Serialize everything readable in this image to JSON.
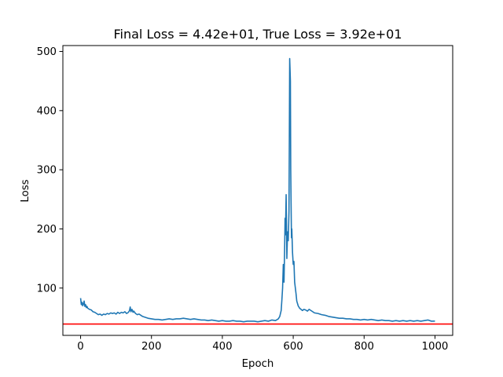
{
  "chart_data": {
    "type": "line",
    "title": "Final Loss = 4.42e+01, True Loss = 3.92e+01",
    "xlabel": "Epoch",
    "ylabel": "Loss",
    "xlim": [
      -50,
      1050
    ],
    "ylim": [
      20,
      510
    ],
    "x_ticks": [
      0,
      200,
      400,
      600,
      800,
      1000
    ],
    "y_ticks": [
      100,
      200,
      300,
      400,
      500
    ],
    "grid": false,
    "series": [
      {
        "color": "#1f77b4",
        "points": [
          [
            0,
            83
          ],
          [
            2,
            72
          ],
          [
            4,
            76
          ],
          [
            6,
            70
          ],
          [
            8,
            73
          ],
          [
            10,
            78
          ],
          [
            12,
            69
          ],
          [
            14,
            72
          ],
          [
            16,
            67
          ],
          [
            18,
            69
          ],
          [
            20,
            66
          ],
          [
            25,
            64
          ],
          [
            30,
            63
          ],
          [
            35,
            60
          ],
          [
            40,
            59
          ],
          [
            45,
            57
          ],
          [
            50,
            55
          ],
          [
            55,
            56
          ],
          [
            60,
            54
          ],
          [
            65,
            56
          ],
          [
            70,
            55
          ],
          [
            75,
            57
          ],
          [
            80,
            56
          ],
          [
            85,
            58
          ],
          [
            90,
            57
          ],
          [
            95,
            58
          ],
          [
            100,
            56
          ],
          [
            105,
            59
          ],
          [
            110,
            57
          ],
          [
            115,
            59
          ],
          [
            120,
            58
          ],
          [
            125,
            60
          ],
          [
            130,
            57
          ],
          [
            135,
            59
          ],
          [
            138,
            62
          ],
          [
            140,
            68
          ],
          [
            142,
            60
          ],
          [
            145,
            64
          ],
          [
            148,
            59
          ],
          [
            150,
            61
          ],
          [
            155,
            57
          ],
          [
            160,
            55
          ],
          [
            165,
            56
          ],
          [
            170,
            54
          ],
          [
            175,
            52
          ],
          [
            180,
            51
          ],
          [
            190,
            49
          ],
          [
            200,
            48
          ],
          [
            210,
            47
          ],
          [
            220,
            47
          ],
          [
            230,
            46
          ],
          [
            240,
            47
          ],
          [
            250,
            48
          ],
          [
            260,
            47
          ],
          [
            270,
            48
          ],
          [
            280,
            48
          ],
          [
            290,
            49
          ],
          [
            300,
            48
          ],
          [
            310,
            47
          ],
          [
            320,
            48
          ],
          [
            330,
            47
          ],
          [
            340,
            46
          ],
          [
            350,
            46
          ],
          [
            360,
            45
          ],
          [
            370,
            46
          ],
          [
            380,
            45
          ],
          [
            390,
            44
          ],
          [
            400,
            45
          ],
          [
            410,
            44
          ],
          [
            420,
            44
          ],
          [
            430,
            45
          ],
          [
            440,
            44
          ],
          [
            450,
            44
          ],
          [
            460,
            43
          ],
          [
            470,
            44
          ],
          [
            480,
            44
          ],
          [
            490,
            44
          ],
          [
            500,
            43
          ],
          [
            510,
            44
          ],
          [
            520,
            45
          ],
          [
            530,
            44
          ],
          [
            540,
            46
          ],
          [
            550,
            45
          ],
          [
            558,
            48
          ],
          [
            562,
            52
          ],
          [
            566,
            62
          ],
          [
            568,
            80
          ],
          [
            570,
            100
          ],
          [
            572,
            140
          ],
          [
            574,
            110
          ],
          [
            576,
            175
          ],
          [
            577,
            218
          ],
          [
            578,
            190
          ],
          [
            580,
            258
          ],
          [
            581,
            210
          ],
          [
            582,
            150
          ],
          [
            584,
            195
          ],
          [
            586,
            180
          ],
          [
            588,
            230
          ],
          [
            589,
            350
          ],
          [
            590,
            488
          ],
          [
            591,
            470
          ],
          [
            592,
            450
          ],
          [
            593,
            300
          ],
          [
            594,
            240
          ],
          [
            595,
            185
          ],
          [
            596,
            200
          ],
          [
            598,
            160
          ],
          [
            600,
            140
          ],
          [
            602,
            145
          ],
          [
            604,
            110
          ],
          [
            606,
            100
          ],
          [
            608,
            90
          ],
          [
            610,
            78
          ],
          [
            614,
            70
          ],
          [
            618,
            66
          ],
          [
            622,
            64
          ],
          [
            626,
            62
          ],
          [
            630,
            64
          ],
          [
            635,
            63
          ],
          [
            640,
            61
          ],
          [
            645,
            64
          ],
          [
            650,
            62
          ],
          [
            655,
            60
          ],
          [
            660,
            58
          ],
          [
            670,
            57
          ],
          [
            680,
            55
          ],
          [
            690,
            54
          ],
          [
            700,
            52
          ],
          [
            710,
            51
          ],
          [
            720,
            50
          ],
          [
            730,
            49
          ],
          [
            740,
            49
          ],
          [
            750,
            48
          ],
          [
            760,
            48
          ],
          [
            770,
            47
          ],
          [
            780,
            47
          ],
          [
            790,
            46
          ],
          [
            800,
            47
          ],
          [
            810,
            46
          ],
          [
            820,
            47
          ],
          [
            830,
            46
          ],
          [
            840,
            45
          ],
          [
            850,
            46
          ],
          [
            860,
            45
          ],
          [
            870,
            45
          ],
          [
            880,
            44
          ],
          [
            890,
            45
          ],
          [
            900,
            44
          ],
          [
            910,
            45
          ],
          [
            920,
            44
          ],
          [
            930,
            45
          ],
          [
            940,
            44
          ],
          [
            950,
            45
          ],
          [
            960,
            44
          ],
          [
            970,
            45
          ],
          [
            980,
            46
          ],
          [
            990,
            44
          ],
          [
            1000,
            44.2
          ]
        ]
      }
    ],
    "reference_line": {
      "y": 39.2,
      "color": "#ff0000"
    }
  }
}
